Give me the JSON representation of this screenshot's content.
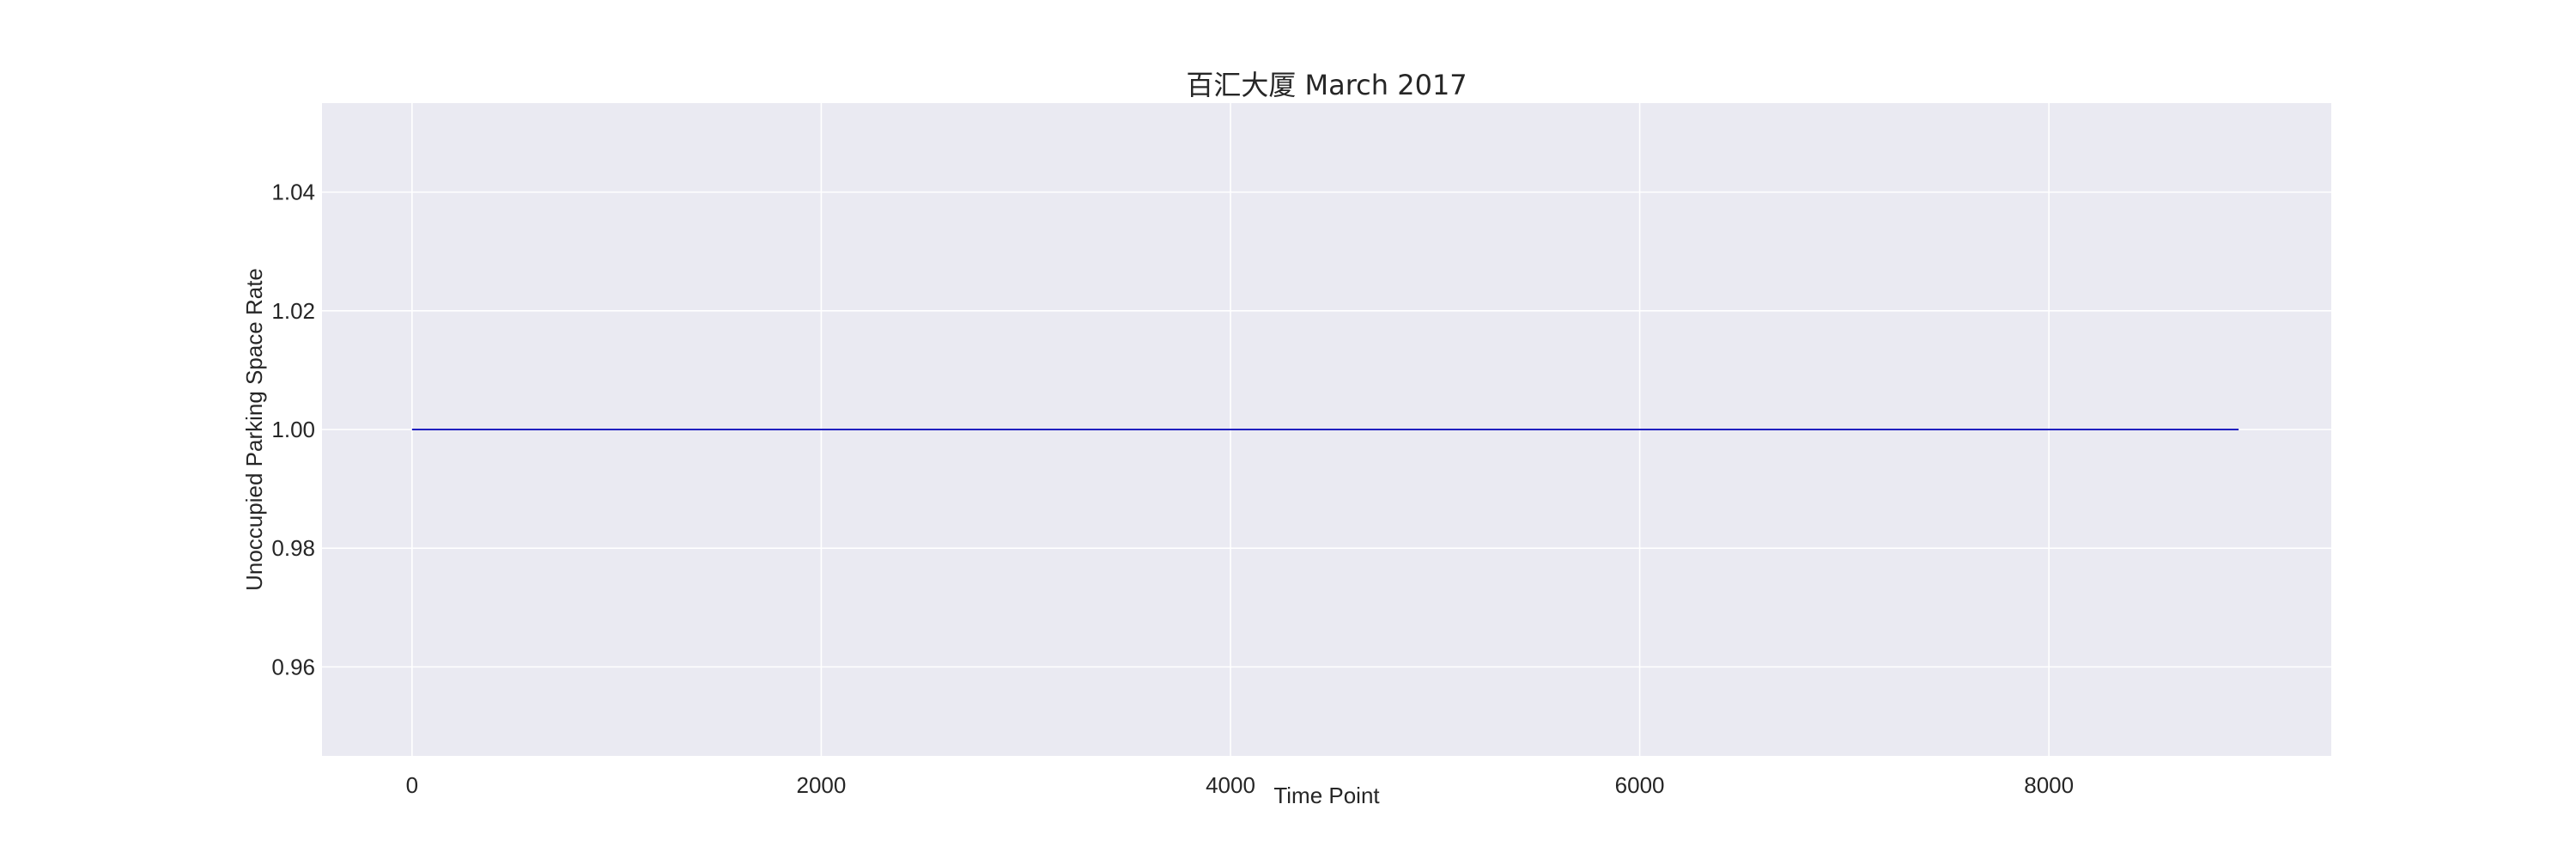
{
  "chart_data": {
    "type": "line",
    "title": "百汇大厦 March 2017",
    "xlabel": "Time Point",
    "ylabel": "Unoccupied Parking Space Rate",
    "xlim": [
      -440,
      9380
    ],
    "ylim": [
      0.945,
      1.055
    ],
    "x_ticks": [
      0,
      2000,
      4000,
      6000,
      8000
    ],
    "x_tick_labels": [
      "0",
      "2000",
      "4000",
      "6000",
      "8000"
    ],
    "y_ticks": [
      0.96,
      0.98,
      1.0,
      1.02,
      1.04
    ],
    "y_tick_labels": [
      "0.96",
      "0.98",
      "1.00",
      "1.02",
      "1.04"
    ],
    "grid": true,
    "background": "#eaeaf2",
    "series": [
      {
        "color": "#1f1fbf",
        "x": [
          0,
          8927
        ],
        "y": [
          1.0,
          1.0
        ]
      }
    ]
  }
}
